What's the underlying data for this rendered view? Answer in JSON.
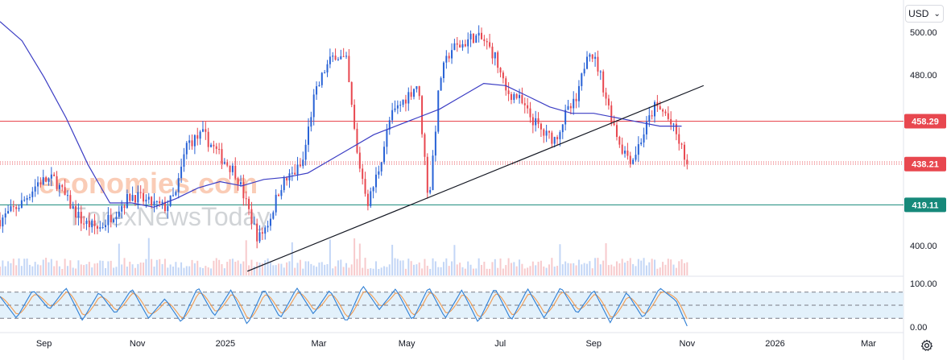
{
  "toolbar": {
    "currency": "USD"
  },
  "watermark": {
    "line1": "economies.com",
    "line2": "ForexNewsToday"
  },
  "icons": {
    "currency_dropdown": "chevron-down-icon",
    "settings": "gear-icon"
  },
  "chart_data": {
    "type": "candlestick",
    "title": "",
    "x_tick_labels": [
      "Sep",
      "Nov",
      "2025",
      "Mar",
      "May",
      "Jul",
      "Sep",
      "Nov",
      "2026",
      "Mar"
    ],
    "y_tick_labels": [
      "500.00",
      "480.00",
      "400.00"
    ],
    "ylim": [
      390,
      505
    ],
    "price_labels": [
      {
        "value": 458.29,
        "text": "458.29",
        "color": "#e8474f"
      },
      {
        "value": 438.21,
        "text": "438.21",
        "color": "#e8474f"
      },
      {
        "value": 419.11,
        "text": "419.11",
        "color": "#16897a"
      }
    ],
    "horizontal_lines": [
      {
        "value": 458.29,
        "color": "#e8474f",
        "style": "solid"
      },
      {
        "value": 419.11,
        "color": "#16897a",
        "style": "solid"
      },
      {
        "value": 438.21,
        "color": "#e8474f",
        "style": "dotted"
      },
      {
        "value": 439.2,
        "color": "#e8474f",
        "style": "dotted"
      }
    ],
    "trendline": {
      "from": [
        2025.04,
        388
      ],
      "to": [
        2025.87,
        475
      ],
      "color": "#131722"
    },
    "colors": {
      "up": "#2862d6",
      "down": "#e8474f",
      "moving_average": "#3b3dc4",
      "stoch_k": "#2f7fd4",
      "stoch_d": "#f29b50",
      "stoch_band": "#e3f1fb"
    },
    "price_path": [
      [
        2024.59,
        412
      ],
      [
        2024.63,
        420
      ],
      [
        2024.66,
        430
      ],
      [
        2024.69,
        431
      ],
      [
        2024.71,
        422
      ],
      [
        2024.74,
        411
      ],
      [
        2024.77,
        408
      ],
      [
        2024.8,
        416
      ],
      [
        2024.83,
        424
      ],
      [
        2024.86,
        420
      ],
      [
        2024.89,
        418
      ],
      [
        2024.91,
        424
      ],
      [
        2024.93,
        448
      ],
      [
        2024.96,
        452
      ],
      [
        2024.99,
        442
      ],
      [
        2025.02,
        434
      ],
      [
        2025.04,
        418
      ],
      [
        2025.06,
        403
      ],
      [
        2025.08,
        412
      ],
      [
        2025.1,
        428
      ],
      [
        2025.12,
        433
      ],
      [
        2025.14,
        438
      ],
      [
        2025.16,
        468
      ],
      [
        2025.18,
        482
      ],
      [
        2025.2,
        490
      ],
      [
        2025.22,
        486
      ],
      [
        2025.24,
        442
      ],
      [
        2025.26,
        420
      ],
      [
        2025.28,
        437
      ],
      [
        2025.3,
        460
      ],
      [
        2025.33,
        470
      ],
      [
        2025.35,
        476
      ],
      [
        2025.37,
        420
      ],
      [
        2025.39,
        478
      ],
      [
        2025.41,
        492
      ],
      [
        2025.43,
        494
      ],
      [
        2025.45,
        498
      ],
      [
        2025.47,
        496
      ],
      [
        2025.49,
        489
      ],
      [
        2025.51,
        472
      ],
      [
        2025.53,
        470
      ],
      [
        2025.55,
        462
      ],
      [
        2025.58,
        452
      ],
      [
        2025.6,
        450
      ],
      [
        2025.62,
        462
      ],
      [
        2025.64,
        468
      ],
      [
        2025.66,
        494
      ],
      [
        2025.68,
        482
      ],
      [
        2025.7,
        462
      ],
      [
        2025.72,
        446
      ],
      [
        2025.74,
        440
      ],
      [
        2025.76,
        452
      ],
      [
        2025.78,
        465
      ],
      [
        2025.8,
        462
      ],
      [
        2025.82,
        452
      ],
      [
        2025.84,
        438.21
      ]
    ],
    "moving_average": [
      [
        2024.59,
        505
      ],
      [
        2024.63,
        496
      ],
      [
        2024.67,
        479
      ],
      [
        2024.71,
        460
      ],
      [
        2024.75,
        438
      ],
      [
        2024.79,
        420
      ],
      [
        2024.83,
        420
      ],
      [
        2024.87,
        418
      ],
      [
        2024.91,
        422
      ],
      [
        2024.95,
        427
      ],
      [
        2024.99,
        430
      ],
      [
        2025.03,
        428
      ],
      [
        2025.07,
        431
      ],
      [
        2025.11,
        432
      ],
      [
        2025.15,
        434
      ],
      [
        2025.19,
        440
      ],
      [
        2025.23,
        446
      ],
      [
        2025.27,
        452
      ],
      [
        2025.31,
        456
      ],
      [
        2025.35,
        460
      ],
      [
        2025.39,
        464
      ],
      [
        2025.43,
        470
      ],
      [
        2025.47,
        476
      ],
      [
        2025.51,
        475
      ],
      [
        2025.55,
        470
      ],
      [
        2025.59,
        465
      ],
      [
        2025.63,
        462
      ],
      [
        2025.67,
        462
      ],
      [
        2025.71,
        460
      ],
      [
        2025.75,
        458
      ],
      [
        2025.79,
        456
      ],
      [
        2025.83,
        456
      ]
    ],
    "volume": [],
    "stochastic": {
      "ylim": [
        0,
        100
      ],
      "levels": [
        80,
        50,
        20
      ],
      "tick_labels": [
        "100.00",
        "0.00"
      ],
      "k_path": [
        [
          2024.59,
          70
        ],
        [
          2024.62,
          20
        ],
        [
          2024.65,
          85
        ],
        [
          2024.68,
          40
        ],
        [
          2024.71,
          90
        ],
        [
          2024.74,
          15
        ],
        [
          2024.77,
          80
        ],
        [
          2024.8,
          30
        ],
        [
          2024.83,
          88
        ],
        [
          2024.86,
          20
        ],
        [
          2024.89,
          65
        ],
        [
          2024.92,
          10
        ],
        [
          2024.95,
          92
        ],
        [
          2024.98,
          25
        ],
        [
          2025.01,
          85
        ],
        [
          2025.04,
          5
        ],
        [
          2025.07,
          88
        ],
        [
          2025.1,
          20
        ],
        [
          2025.13,
          90
        ],
        [
          2025.16,
          30
        ],
        [
          2025.19,
          85
        ],
        [
          2025.22,
          10
        ],
        [
          2025.25,
          95
        ],
        [
          2025.28,
          40
        ],
        [
          2025.31,
          88
        ],
        [
          2025.34,
          15
        ],
        [
          2025.37,
          92
        ],
        [
          2025.4,
          20
        ],
        [
          2025.43,
          85
        ],
        [
          2025.46,
          10
        ],
        [
          2025.49,
          90
        ],
        [
          2025.52,
          15
        ],
        [
          2025.55,
          88
        ],
        [
          2025.58,
          20
        ],
        [
          2025.61,
          92
        ],
        [
          2025.64,
          30
        ],
        [
          2025.67,
          85
        ],
        [
          2025.7,
          10
        ],
        [
          2025.73,
          80
        ],
        [
          2025.76,
          20
        ],
        [
          2025.79,
          90
        ],
        [
          2025.82,
          60
        ],
        [
          2025.84,
          2
        ]
      ]
    }
  }
}
